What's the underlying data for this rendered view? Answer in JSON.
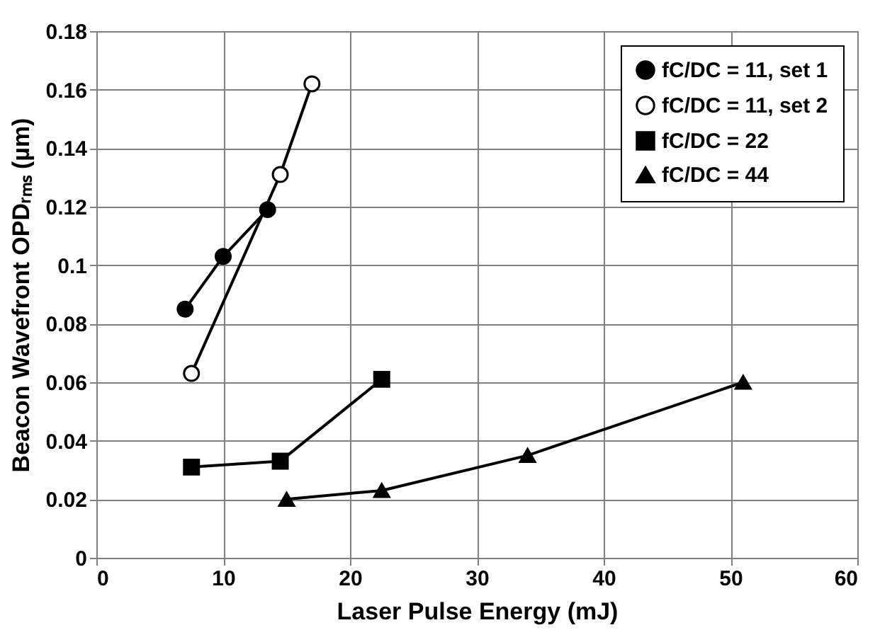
{
  "chart_data": {
    "type": "line",
    "xlabel": "Laser Pulse Energy (mJ)",
    "ylabel": "Beacon Wavefront OPDᵣₘₛ (µm)",
    "xlim": [
      0,
      60
    ],
    "xticks": [
      0,
      10,
      20,
      30,
      40,
      50,
      60
    ],
    "ylim": [
      0,
      0.18
    ],
    "yticks": [
      0,
      0.02,
      0.04,
      0.06,
      0.08,
      0.1,
      0.12,
      0.14,
      0.16,
      0.18
    ],
    "grid": true,
    "legend": "top right",
    "line_style": "solid",
    "series": [
      {
        "name": "fC/DC = 11, set 1",
        "color": "#000000",
        "marker": "circle",
        "x": [
          7,
          10,
          13.5
        ],
        "values": [
          0.085,
          0.103,
          0.119
        ]
      },
      {
        "name": "fC/DC = 11, set 2",
        "color": "#ffffff",
        "marker": "circle",
        "x": [
          7.5,
          14.5,
          17
        ],
        "values": [
          0.063,
          0.131,
          0.162
        ]
      },
      {
        "name": "fC/DC = 22",
        "color": "#000000",
        "marker": "square",
        "x": [
          7.5,
          14.5,
          22.5
        ],
        "values": [
          0.031,
          0.033,
          0.061
        ]
      },
      {
        "name": "fC/DC = 44",
        "color": "#000000",
        "marker": "triangle",
        "x": [
          15,
          22.5,
          34,
          51
        ],
        "values": [
          0.02,
          0.023,
          0.035,
          0.06
        ]
      }
    ]
  }
}
